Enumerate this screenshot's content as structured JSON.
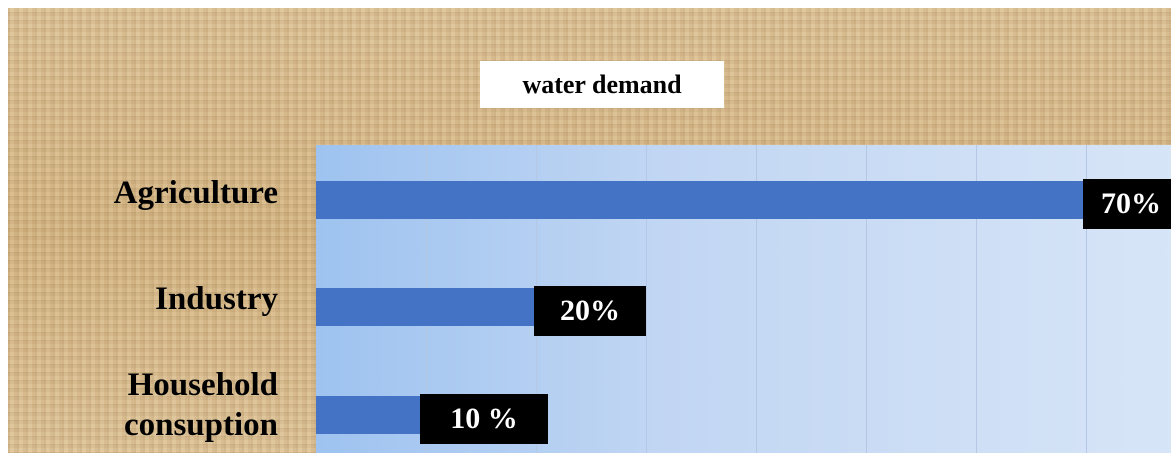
{
  "chart_data": {
    "type": "bar",
    "orientation": "horizontal",
    "title": "water demand",
    "categories": [
      "Agriculture",
      "Industry",
      "Household consuption"
    ],
    "category_display": [
      [
        "Agriculture"
      ],
      [
        "Industry"
      ],
      [
        "Household",
        "consuption"
      ]
    ],
    "values": [
      70,
      20,
      10
    ],
    "value_labels": [
      "70%",
      "20%",
      "10 %"
    ],
    "unit": "%",
    "xlim": [
      0,
      80
    ],
    "grid": true,
    "gridline_step": 10,
    "bar_color": "#4472c4",
    "label_background": "#000000",
    "label_color": "#ffffff"
  }
}
